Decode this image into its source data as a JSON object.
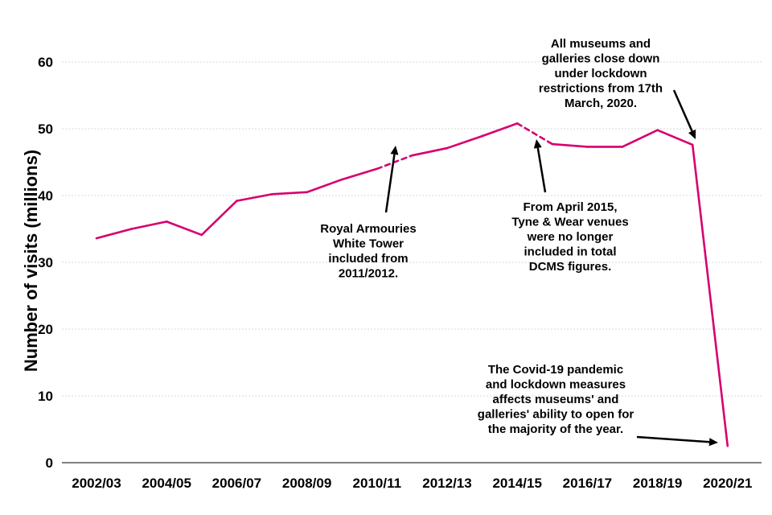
{
  "chart_data": {
    "type": "line",
    "title": "",
    "xlabel": "",
    "ylabel": "Number of visits (millions)",
    "ylim": [
      0,
      60
    ],
    "yticks": [
      "0",
      "10",
      "20",
      "30",
      "40",
      "50",
      "60"
    ],
    "x": [
      "2002/03",
      "2003/04",
      "2004/05",
      "2005/06",
      "2006/07",
      "2007/08",
      "2008/09",
      "2009/10",
      "2010/11",
      "2011/12",
      "2012/13",
      "2013/14",
      "2014/15",
      "2015/16",
      "2016/17",
      "2017/18",
      "2018/19",
      "2019/20",
      "2020/21"
    ],
    "xtick_labels": [
      "2002/03",
      "2004/05",
      "2006/07",
      "2008/09",
      "2010/11",
      "2012/13",
      "2014/15",
      "2016/17",
      "2018/19",
      "2020/21"
    ],
    "series": [
      {
        "name": "Visits",
        "color": "#d6006f",
        "values": [
          33.6,
          35.0,
          36.1,
          34.1,
          39.2,
          40.2,
          40.5,
          42.4,
          44.0,
          46.0,
          47.1,
          48.9,
          50.8,
          47.7,
          47.3,
          47.3,
          49.8,
          47.6,
          2.5
        ],
        "dashed_segments": [
          [
            8,
            9
          ],
          [
            12,
            13
          ]
        ]
      }
    ],
    "grid": true,
    "annotations": [
      {
        "lines": [
          "Royal Armouries",
          "White Tower",
          "included from",
          "2011/2012."
        ]
      },
      {
        "lines": [
          "From April 2015,",
          "Tyne & Wear venues",
          "were no longer",
          "included in total",
          "DCMS figures."
        ]
      },
      {
        "lines": [
          "All museums and",
          "galleries close down",
          "under lockdown",
          "restrictions from 17th",
          "March, 2020."
        ]
      },
      {
        "lines": [
          "The Covid-19 pandemic",
          "and lockdown measures",
          "affects museums' and",
          "galleries' ability to open for",
          "the majority of the year."
        ]
      }
    ]
  }
}
